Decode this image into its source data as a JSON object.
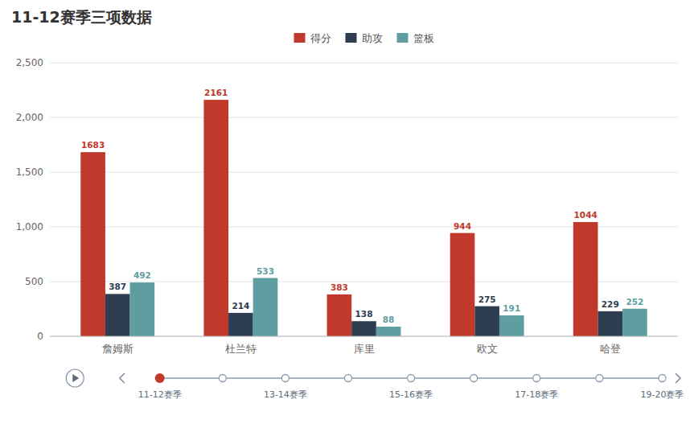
{
  "chart_data": {
    "type": "bar",
    "title": "11-12赛季三项数据",
    "categories": [
      "詹姆斯",
      "杜兰特",
      "库里",
      "欧文",
      "哈登"
    ],
    "series": [
      {
        "name": "得分",
        "color": "#c0392b",
        "values": [
          1683,
          2161,
          383,
          944,
          1044
        ]
      },
      {
        "name": "助攻",
        "color": "#2c3e50",
        "values": [
          387,
          214,
          138,
          275,
          229
        ]
      },
      {
        "name": "篮板",
        "color": "#5f9ea0",
        "values": [
          492,
          533,
          88,
          191,
          252
        ]
      }
    ],
    "ylim": [
      0,
      2500
    ],
    "yticks": [
      0,
      500,
      {
        "value": 1000,
        "label": "1,000"
      },
      {
        "value": 1500,
        "label": "1,500"
      },
      {
        "value": 2000,
        "label": "2,000"
      },
      {
        "value": 2500,
        "label": "2,500"
      }
    ],
    "grid": true,
    "data_labels": true,
    "legend": "top",
    "annotations": [
      "11-12赛季",
      "13-14赛季",
      "15-16赛季",
      "17-18赛季",
      "19-20赛季"
    ]
  }
}
